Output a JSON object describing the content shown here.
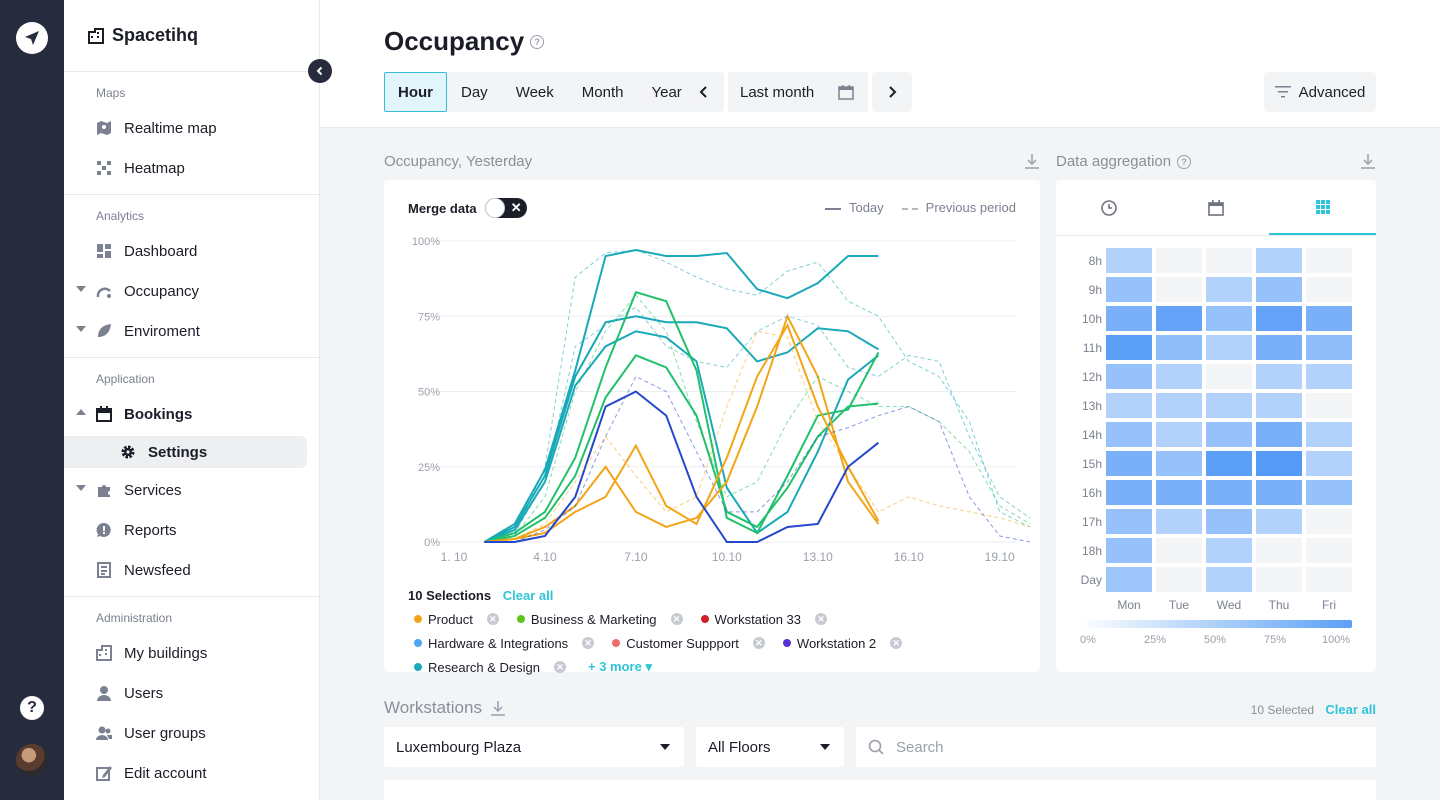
{
  "app": {
    "name": "Spacetihq"
  },
  "sidebar": {
    "sections": [
      {
        "title": "Maps",
        "items": [
          {
            "label": "Realtime map"
          },
          {
            "label": "Heatmap"
          }
        ]
      },
      {
        "title": "Analytics",
        "items": [
          {
            "label": "Dashboard"
          },
          {
            "label": "Occupancy"
          },
          {
            "label": "Enviroment"
          }
        ]
      },
      {
        "title": "Application",
        "items": [
          {
            "label": "Bookings"
          },
          {
            "label": "Settings"
          },
          {
            "label": "Services"
          },
          {
            "label": "Reports"
          },
          {
            "label": "Newsfeed"
          }
        ]
      },
      {
        "title": "Administration",
        "items": [
          {
            "label": "My buildings"
          },
          {
            "label": "Users"
          },
          {
            "label": "User groups"
          },
          {
            "label": "Edit account"
          }
        ]
      }
    ]
  },
  "header": {
    "title": "Occupancy",
    "periods": [
      "Hour",
      "Day",
      "Week",
      "Month",
      "Year"
    ],
    "active_period": "Hour",
    "range_label": "Last month",
    "advanced_label": "Advanced"
  },
  "occupancy_card": {
    "title": "Occupancy, Yesterday",
    "merge_label": "Merge data",
    "legend_today": "Today",
    "legend_previous": "Previous period",
    "selections_label": "10 Selections",
    "clear_all": "Clear all",
    "more_label": "+ 3 more",
    "chips": [
      {
        "label": "Product",
        "color": "#f2a516"
      },
      {
        "label": "Business & Marketing",
        "color": "#5cc41a"
      },
      {
        "label": "Workstation 33",
        "color": "#d21f2a"
      },
      {
        "label": "Hardware & Integrations",
        "color": "#4fa3f5"
      },
      {
        "label": "Customer Suppport",
        "color": "#f06a6a"
      },
      {
        "label": "Workstation 2",
        "color": "#5a2ed6"
      },
      {
        "label": "Research & Design",
        "color": "#19a9b8"
      }
    ]
  },
  "chart_data": {
    "type": "line",
    "x_ticks": [
      "1. 10",
      "4.10",
      "7.10",
      "10.10",
      "13.10",
      "16.10",
      "19.10"
    ],
    "y_ticks": [
      "100%",
      "75%",
      "50%",
      "25%",
      "0%"
    ],
    "ylim": [
      0,
      100
    ],
    "xlim": [
      1,
      20
    ],
    "series": [
      {
        "color": "#19a9b8",
        "style": "solid",
        "x": [
          2,
          3,
          4,
          5,
          6,
          7,
          8,
          9,
          10,
          11,
          12,
          13,
          14,
          15
        ],
        "y": [
          0,
          6,
          24,
          57,
          95,
          97,
          95,
          95,
          96,
          84,
          81,
          86,
          95,
          95
        ]
      },
      {
        "color": "#19a9b8",
        "style": "solid",
        "x": [
          2,
          3,
          4,
          5,
          6,
          7,
          8,
          9,
          10,
          11,
          12,
          13,
          14,
          15
        ],
        "y": [
          0,
          5,
          22,
          55,
          73,
          75,
          73,
          73,
          71,
          60,
          63,
          71,
          70,
          64
        ]
      },
      {
        "color": "#19a9b8",
        "style": "solid",
        "x": [
          2,
          3,
          4,
          5,
          6,
          7,
          8,
          9,
          10,
          11,
          12,
          13,
          14,
          15
        ],
        "y": [
          0,
          4,
          20,
          52,
          65,
          70,
          68,
          60,
          18,
          3,
          10,
          30,
          54,
          62
        ]
      },
      {
        "color": "#21c06a",
        "style": "solid",
        "x": [
          2,
          3,
          4,
          5,
          6,
          7,
          8,
          9,
          10,
          11,
          12,
          13,
          14,
          15
        ],
        "y": [
          0,
          3,
          10,
          28,
          58,
          83,
          80,
          57,
          8,
          3,
          22,
          42,
          44,
          63
        ]
      },
      {
        "color": "#21c06a",
        "style": "solid",
        "x": [
          2,
          3,
          4,
          5,
          6,
          7,
          8,
          9,
          10,
          11,
          12,
          13,
          14,
          15
        ],
        "y": [
          0,
          2,
          8,
          22,
          48,
          62,
          58,
          42,
          10,
          5,
          18,
          35,
          45,
          46
        ]
      },
      {
        "color": "#f2a516",
        "style": "solid",
        "x": [
          2,
          3,
          4,
          5,
          6,
          7,
          8,
          9,
          10,
          11,
          12,
          13,
          14,
          15
        ],
        "y": [
          0,
          1,
          5,
          12,
          25,
          10,
          5,
          8,
          20,
          45,
          75,
          55,
          20,
          6
        ]
      },
      {
        "color": "#f2a516",
        "style": "solid",
        "x": [
          2,
          3,
          4,
          5,
          6,
          7,
          8,
          9,
          10,
          11,
          12,
          13,
          14,
          15
        ],
        "y": [
          0,
          1,
          3,
          10,
          15,
          32,
          12,
          6,
          28,
          55,
          72,
          45,
          25,
          7
        ]
      },
      {
        "color": "#2448c9",
        "style": "solid",
        "x": [
          2,
          3,
          4,
          5,
          6,
          7,
          8,
          9,
          10,
          11,
          12,
          13,
          14,
          15
        ],
        "y": [
          0,
          0,
          2,
          15,
          45,
          50,
          42,
          15,
          0,
          0,
          5,
          6,
          25,
          33
        ]
      },
      {
        "color": "#19a9b8",
        "style": "dashed",
        "x": [
          3,
          4,
          5,
          6,
          7,
          8,
          9,
          10,
          11,
          12,
          13,
          14,
          15,
          16,
          17,
          18,
          19,
          20
        ],
        "y": [
          2,
          25,
          88,
          96,
          97,
          93,
          88,
          84,
          82,
          90,
          93,
          80,
          75,
          60,
          55,
          40,
          10,
          5
        ]
      },
      {
        "color": "#19a9b8",
        "style": "dashed",
        "x": [
          3,
          4,
          5,
          6,
          7,
          8,
          9,
          10,
          11,
          12,
          13,
          14,
          15,
          16,
          17,
          18,
          19,
          20
        ],
        "y": [
          3,
          20,
          65,
          72,
          78,
          65,
          60,
          58,
          70,
          75,
          72,
          58,
          55,
          62,
          60,
          35,
          15,
          8
        ]
      },
      {
        "color": "#21c06a",
        "style": "dashed",
        "x": [
          3,
          4,
          5,
          6,
          7,
          8,
          9,
          10,
          11,
          12,
          13,
          14,
          15,
          16,
          17,
          18,
          19,
          20
        ],
        "y": [
          2,
          15,
          50,
          70,
          82,
          70,
          40,
          15,
          20,
          40,
          55,
          50,
          45,
          45,
          40,
          30,
          12,
          6
        ]
      },
      {
        "color": "#f2a516",
        "style": "dashed",
        "x": [
          3,
          4,
          5,
          6,
          7,
          8,
          9,
          10,
          11,
          12,
          13,
          14,
          15,
          16,
          17,
          18,
          19,
          20
        ],
        "y": [
          1,
          6,
          20,
          35,
          22,
          10,
          15,
          45,
          70,
          68,
          40,
          25,
          10,
          15,
          12,
          10,
          8,
          5
        ]
      },
      {
        "color": "#2448c9",
        "style": "dashed",
        "x": [
          3,
          4,
          5,
          6,
          7,
          8,
          9,
          10,
          11,
          12,
          13,
          14,
          15,
          16,
          17,
          18,
          19,
          20
        ],
        "y": [
          0,
          4,
          12,
          35,
          55,
          50,
          30,
          10,
          10,
          20,
          35,
          38,
          42,
          45,
          40,
          15,
          2,
          0
        ]
      }
    ]
  },
  "aggregation": {
    "title": "Data aggregation",
    "hours": [
      "8h",
      "9h",
      "10h",
      "11h",
      "12h",
      "13h",
      "14h",
      "15h",
      "16h",
      "17h",
      "18h",
      "Day"
    ],
    "days": [
      "Mon",
      "Tue",
      "Wed",
      "Thu",
      "Fri"
    ],
    "values": [
      [
        0.3,
        0.05,
        0.05,
        0.3,
        0.05
      ],
      [
        0.5,
        0.05,
        0.3,
        0.5,
        0.05
      ],
      [
        0.7,
        0.85,
        0.5,
        0.85,
        0.7
      ],
      [
        0.9,
        0.55,
        0.3,
        0.7,
        0.55
      ],
      [
        0.5,
        0.3,
        0.05,
        0.3,
        0.3
      ],
      [
        0.3,
        0.3,
        0.3,
        0.3,
        0.05
      ],
      [
        0.5,
        0.3,
        0.5,
        0.7,
        0.3
      ],
      [
        0.7,
        0.5,
        0.9,
        0.95,
        0.3
      ],
      [
        0.7,
        0.7,
        0.7,
        0.7,
        0.5
      ],
      [
        0.5,
        0.3,
        0.5,
        0.3,
        0.05
      ],
      [
        0.5,
        0.05,
        0.3,
        0.05,
        0.05
      ],
      [
        0.45,
        0.05,
        0.3,
        0.05,
        0.05
      ]
    ],
    "scale_labels": [
      "0%",
      "25%",
      "50%",
      "75%",
      "100%"
    ]
  },
  "workstations": {
    "title": "Workstations",
    "selected_label": "10 Selected",
    "clear_all": "Clear all",
    "building": "Luxembourg Plaza",
    "floors": "All Floors",
    "search_placeholder": "Search"
  }
}
